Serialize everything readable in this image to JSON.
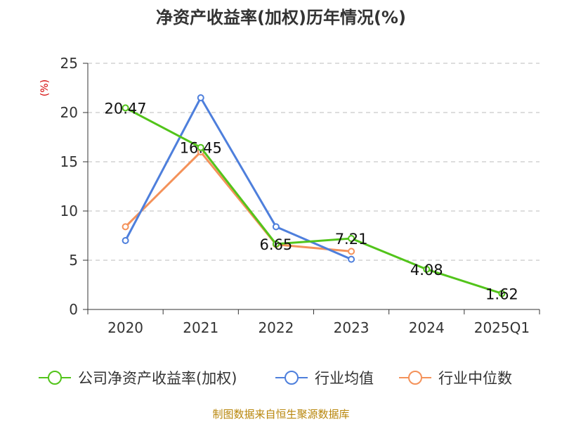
{
  "chart_data": {
    "type": "line",
    "title": "净资产收益率(加权)历年情况(%)",
    "ylabel": "(%)",
    "categories": [
      "2020",
      "2021",
      "2022",
      "2023",
      "2024",
      "2025Q1"
    ],
    "yticks": [
      "0",
      "5",
      "10",
      "15",
      "20",
      "25"
    ],
    "ylim": [
      0,
      25
    ],
    "grid": true,
    "legend_position": "bottom",
    "series": [
      {
        "name": "公司净资产收益率(加权)",
        "color": "#52c41a",
        "values": [
          20.47,
          16.45,
          6.65,
          7.21,
          4.08,
          1.62
        ],
        "labels": [
          "20.47",
          "16.45",
          "6.65",
          "7.21",
          "4.08",
          "1.62"
        ]
      },
      {
        "name": "行业均值",
        "color": "#4e7fdc",
        "values": [
          7.0,
          21.5,
          8.4,
          5.1,
          null,
          null
        ]
      },
      {
        "name": "行业中位数",
        "color": "#f4925a",
        "values": [
          8.4,
          16.0,
          6.6,
          5.9,
          null,
          null
        ]
      }
    ]
  },
  "footer": {
    "source": "制图数据来自恒生聚源数据库"
  }
}
